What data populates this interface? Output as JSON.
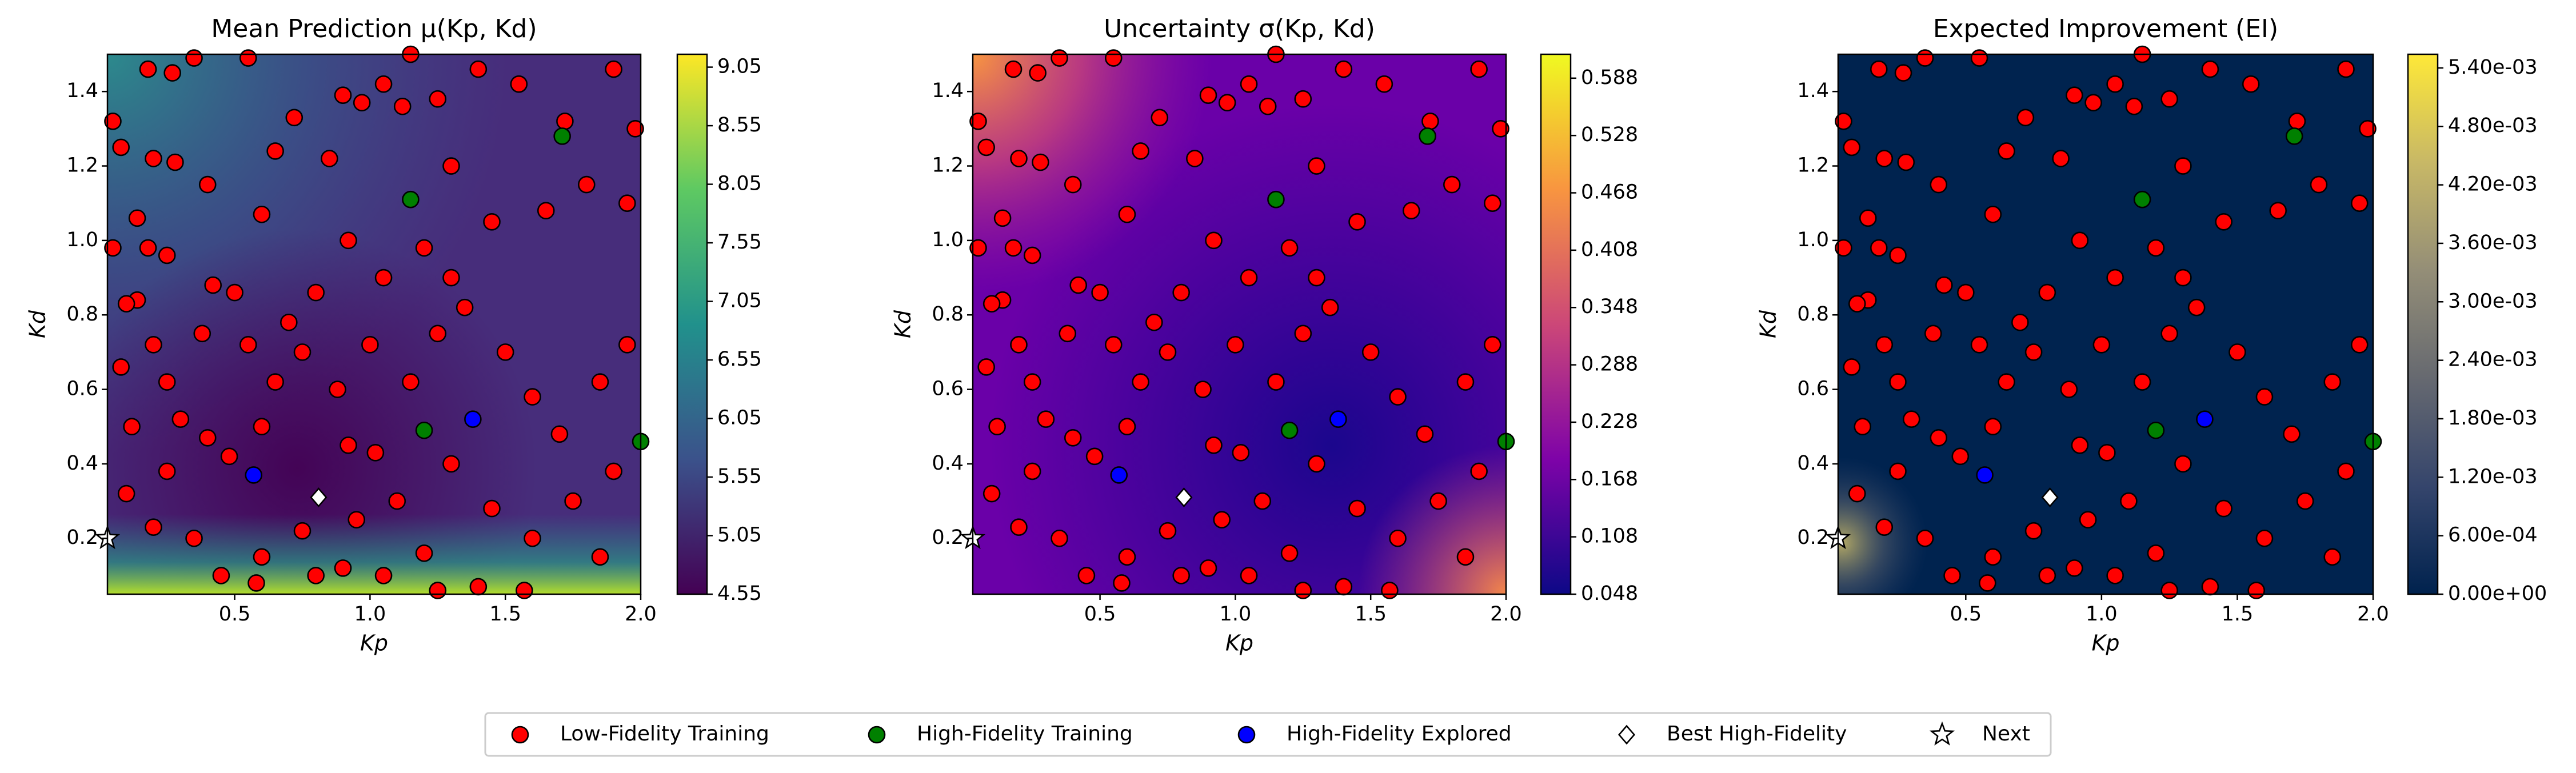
{
  "chart_data": [
    {
      "type": "scatter-heatmap",
      "title": "Mean Prediction μ(Kp, Kd)",
      "x_label": "Kp",
      "y_label": "Kd",
      "xlim": [
        0.03,
        2.0
      ],
      "ylim": [
        0.05,
        1.5
      ],
      "xticks": [
        0.5,
        {
          "value": 1,
          "label": "1.0"
        },
        1.5,
        {
          "value": 2,
          "label": "2.0"
        }
      ],
      "yticks": [
        0.2,
        0.4,
        0.6,
        0.8,
        {
          "value": 1,
          "label": "1.0"
        },
        1.2,
        1.4
      ],
      "clim": [
        4.55,
        9.16
      ],
      "cticks": [
        4.55,
        5.05,
        5.55,
        6.05,
        6.55,
        7.05,
        7.55,
        8.05,
        8.55,
        9.05
      ],
      "colormap": [
        "#440154",
        "#3b528b",
        "#21918c",
        "#5ec962",
        "#fde725"
      ],
      "series": [
        {
          "name": "Low-Fidelity Training",
          "color": "#ff0000",
          "marker": "circle",
          "x": [
            0.05,
            0.08,
            0.18,
            0.27,
            0.35,
            0.55,
            0.2,
            0.28,
            0.4,
            0.14,
            0.05,
            0.18,
            0.25,
            0.14,
            0.1,
            0.42,
            0.5,
            0.6,
            0.65,
            0.72,
            0.85,
            0.9,
            0.97,
            1.05,
            1.12,
            1.15,
            1.25,
            1.4,
            1.55,
            1.72,
            1.9,
            1.98,
            1.95,
            1.8,
            1.65,
            1.45,
            1.3,
            1.2,
            1.05,
            0.92,
            0.8,
            0.7,
            0.55,
            0.38,
            0.2,
            0.08,
            0.25,
            0.12,
            0.3,
            0.4,
            0.48,
            0.6,
            0.65,
            0.75,
            0.88,
            1.0,
            1.15,
            1.25,
            1.35,
            1.5,
            1.6,
            1.7,
            1.85,
            1.95,
            1.9,
            1.75,
            1.6,
            1.45,
            1.3,
            1.1,
            0.95,
            0.9,
            0.8,
            0.6,
            0.45,
            0.35,
            0.2,
            0.1,
            0.25,
            0.75,
            1.2,
            1.4,
            1.57,
            1.25,
            0.58,
            1.05,
            1.85,
            1.3,
            0.92,
            1.02
          ],
          "values": [
            1.32,
            1.25,
            1.46,
            1.45,
            1.49,
            1.49,
            1.22,
            1.21,
            1.15,
            1.06,
            0.98,
            0.98,
            0.96,
            0.84,
            0.83,
            0.88,
            0.86,
            1.07,
            1.24,
            1.33,
            1.22,
            1.39,
            1.37,
            1.42,
            1.36,
            1.5,
            1.38,
            1.46,
            1.42,
            1.32,
            1.46,
            1.3,
            1.1,
            1.15,
            1.08,
            1.05,
            1.2,
            0.98,
            0.9,
            1.0,
            0.86,
            0.78,
            0.72,
            0.75,
            0.72,
            0.66,
            0.62,
            0.5,
            0.52,
            0.47,
            0.42,
            0.5,
            0.62,
            0.7,
            0.6,
            0.72,
            0.62,
            0.75,
            0.82,
            0.7,
            0.58,
            0.48,
            0.62,
            0.72,
            0.38,
            0.3,
            0.2,
            0.28,
            0.4,
            0.3,
            0.25,
            0.12,
            0.1,
            0.15,
            0.1,
            0.2,
            0.23,
            0.32,
            0.38,
            0.22,
            0.16,
            0.07,
            0.06,
            0.06,
            0.08,
            0.1,
            0.15,
            0.9,
            0.45,
            0.43
          ]
        },
        {
          "name": "High-Fidelity Training",
          "color": "#008000",
          "marker": "circle",
          "x": [
            1.15,
            1.71,
            1.2,
            2.0
          ],
          "values": [
            1.11,
            1.28,
            0.49,
            0.46
          ]
        },
        {
          "name": "High-Fidelity Explored",
          "color": "#0000ff",
          "marker": "circle",
          "x": [
            0.57,
            1.38
          ],
          "values": [
            0.37,
            0.52
          ]
        },
        {
          "name": "Best High-Fidelity",
          "color": "#ffffff",
          "marker": "diamond",
          "x": [
            0.81
          ],
          "values": [
            0.31
          ]
        },
        {
          "name": "Next",
          "color": "#ffffff",
          "marker": "star",
          "x": [
            0.03
          ],
          "values": [
            0.2
          ]
        }
      ]
    },
    {
      "type": "scatter-heatmap",
      "title": "Uncertainty σ(Kp, Kd)",
      "x_label": "Kp",
      "y_label": "Kd",
      "xlim": [
        0.03,
        2.0
      ],
      "ylim": [
        0.05,
        1.5
      ],
      "xticks": [
        0.5,
        {
          "value": 1,
          "label": "1.0"
        },
        1.5,
        {
          "value": 2,
          "label": "2.0"
        }
      ],
      "yticks": [
        0.2,
        0.4,
        0.6,
        0.8,
        {
          "value": 1,
          "label": "1.0"
        },
        1.2,
        1.4
      ],
      "clim": [
        0.048,
        0.613
      ],
      "cticks": [
        0.048,
        0.108,
        0.168,
        0.228,
        0.288,
        0.348,
        0.408,
        0.468,
        0.528,
        0.588
      ],
      "colormap": [
        "#0d0887",
        "#7e03a8",
        "#cc4778",
        "#f89540",
        "#f0f921"
      ],
      "series": [
        {
          "color": "#ff0000",
          "marker": "circle",
          "x": [
            0.05,
            0.08,
            0.18,
            0.27,
            0.35,
            0.55,
            0.2,
            0.28,
            0.4,
            0.14,
            0.05,
            0.18,
            0.25,
            0.14,
            0.1,
            0.42,
            0.5,
            0.6,
            0.65,
            0.72,
            0.85,
            0.9,
            0.97,
            1.05,
            1.12,
            1.15,
            1.25,
            1.4,
            1.55,
            1.72,
            1.9,
            1.98,
            1.95,
            1.8,
            1.65,
            1.45,
            1.3,
            1.2,
            1.05,
            0.92,
            0.8,
            0.7,
            0.55,
            0.38,
            0.2,
            0.08,
            0.25,
            0.12,
            0.3,
            0.4,
            0.48,
            0.6,
            0.65,
            0.75,
            0.88,
            1.0,
            1.15,
            1.25,
            1.35,
            1.5,
            1.6,
            1.7,
            1.85,
            1.95,
            1.9,
            1.75,
            1.6,
            1.45,
            1.3,
            1.1,
            0.95,
            0.9,
            0.8,
            0.6,
            0.45,
            0.35,
            0.2,
            0.1,
            0.25,
            0.75,
            1.2,
            1.4,
            1.57,
            1.25,
            0.58,
            1.05,
            1.85,
            1.3,
            0.92,
            1.02
          ],
          "values": [
            1.32,
            1.25,
            1.46,
            1.45,
            1.49,
            1.49,
            1.22,
            1.21,
            1.15,
            1.06,
            0.98,
            0.98,
            0.96,
            0.84,
            0.83,
            0.88,
            0.86,
            1.07,
            1.24,
            1.33,
            1.22,
            1.39,
            1.37,
            1.42,
            1.36,
            1.5,
            1.38,
            1.46,
            1.42,
            1.32,
            1.46,
            1.3,
            1.1,
            1.15,
            1.08,
            1.05,
            1.2,
            0.98,
            0.9,
            1.0,
            0.86,
            0.78,
            0.72,
            0.75,
            0.72,
            0.66,
            0.62,
            0.5,
            0.52,
            0.47,
            0.42,
            0.5,
            0.62,
            0.7,
            0.6,
            0.72,
            0.62,
            0.75,
            0.82,
            0.7,
            0.58,
            0.48,
            0.62,
            0.72,
            0.38,
            0.3,
            0.2,
            0.28,
            0.4,
            0.3,
            0.25,
            0.12,
            0.1,
            0.15,
            0.1,
            0.2,
            0.23,
            0.32,
            0.38,
            0.22,
            0.16,
            0.07,
            0.06,
            0.06,
            0.08,
            0.1,
            0.15,
            0.9,
            0.45,
            0.43
          ]
        },
        {
          "color": "#008000",
          "marker": "circle",
          "x": [
            1.15,
            1.71,
            1.2,
            2.0
          ],
          "values": [
            1.11,
            1.28,
            0.49,
            0.46
          ]
        },
        {
          "color": "#0000ff",
          "marker": "circle",
          "x": [
            0.57,
            1.38
          ],
          "values": [
            0.37,
            0.52
          ]
        },
        {
          "color": "#ffffff",
          "marker": "diamond",
          "x": [
            0.81
          ],
          "values": [
            0.31
          ]
        },
        {
          "color": "#ffffff",
          "marker": "star",
          "x": [
            0.03
          ],
          "values": [
            0.2
          ]
        }
      ]
    },
    {
      "type": "scatter-heatmap",
      "title": "Expected Improvement (EI)",
      "x_label": "Kp",
      "y_label": "Kd",
      "xlim": [
        0.03,
        2.0
      ],
      "ylim": [
        0.05,
        1.5
      ],
      "xticks": [
        0.5,
        {
          "value": 1,
          "label": "1.0"
        },
        1.5,
        {
          "value": 2,
          "label": "2.0"
        }
      ],
      "yticks": [
        0.2,
        0.4,
        0.6,
        0.8,
        {
          "value": 1,
          "label": "1.0"
        },
        1.2,
        1.4
      ],
      "clim": [
        0,
        0.00554
      ],
      "cticks": [
        {
          "value": 0,
          "label": "0.00e+00"
        },
        {
          "value": 0.0006,
          "label": "6.00e-04"
        },
        {
          "value": 0.0012,
          "label": "1.20e-03"
        },
        {
          "value": 0.0018,
          "label": "1.80e-03"
        },
        {
          "value": 0.0024,
          "label": "2.40e-03"
        },
        {
          "value": 0.003,
          "label": "3.00e-03"
        },
        {
          "value": 0.0036,
          "label": "3.60e-03"
        },
        {
          "value": 0.0042,
          "label": "4.20e-03"
        },
        {
          "value": 0.0048,
          "label": "4.80e-03"
        },
        {
          "value": 0.0054,
          "label": "5.40e-03"
        }
      ],
      "colormap": [
        "#00224e",
        "#35456c",
        "#666970",
        "#948e77",
        "#c8b866",
        "#fee838"
      ],
      "series": [
        {
          "color": "#ff0000",
          "marker": "circle",
          "x": [
            0.05,
            0.08,
            0.18,
            0.27,
            0.35,
            0.55,
            0.2,
            0.28,
            0.4,
            0.14,
            0.05,
            0.18,
            0.25,
            0.14,
            0.1,
            0.42,
            0.5,
            0.6,
            0.65,
            0.72,
            0.85,
            0.9,
            0.97,
            1.05,
            1.12,
            1.15,
            1.25,
            1.4,
            1.55,
            1.72,
            1.9,
            1.98,
            1.95,
            1.8,
            1.65,
            1.45,
            1.3,
            1.2,
            1.05,
            0.92,
            0.8,
            0.7,
            0.55,
            0.38,
            0.2,
            0.08,
            0.25,
            0.12,
            0.3,
            0.4,
            0.48,
            0.6,
            0.65,
            0.75,
            0.88,
            1.0,
            1.15,
            1.25,
            1.35,
            1.5,
            1.6,
            1.7,
            1.85,
            1.95,
            1.9,
            1.75,
            1.6,
            1.45,
            1.3,
            1.1,
            0.95,
            0.9,
            0.8,
            0.6,
            0.45,
            0.35,
            0.2,
            0.1,
            0.25,
            0.75,
            1.2,
            1.4,
            1.57,
            1.25,
            0.58,
            1.05,
            1.85,
            1.3,
            0.92,
            1.02
          ],
          "values": [
            1.32,
            1.25,
            1.46,
            1.45,
            1.49,
            1.49,
            1.22,
            1.21,
            1.15,
            1.06,
            0.98,
            0.98,
            0.96,
            0.84,
            0.83,
            0.88,
            0.86,
            1.07,
            1.24,
            1.33,
            1.22,
            1.39,
            1.37,
            1.42,
            1.36,
            1.5,
            1.38,
            1.46,
            1.42,
            1.32,
            1.46,
            1.3,
            1.1,
            1.15,
            1.08,
            1.05,
            1.2,
            0.98,
            0.9,
            1.0,
            0.86,
            0.78,
            0.72,
            0.75,
            0.72,
            0.66,
            0.62,
            0.5,
            0.52,
            0.47,
            0.42,
            0.5,
            0.62,
            0.7,
            0.6,
            0.72,
            0.62,
            0.75,
            0.82,
            0.7,
            0.58,
            0.48,
            0.62,
            0.72,
            0.38,
            0.3,
            0.2,
            0.28,
            0.4,
            0.3,
            0.25,
            0.12,
            0.1,
            0.15,
            0.1,
            0.2,
            0.23,
            0.32,
            0.38,
            0.22,
            0.16,
            0.07,
            0.06,
            0.06,
            0.08,
            0.1,
            0.15,
            0.9,
            0.45,
            0.43
          ]
        },
        {
          "color": "#008000",
          "marker": "circle",
          "x": [
            1.15,
            1.71,
            1.2,
            2.0
          ],
          "values": [
            1.11,
            1.28,
            0.49,
            0.46
          ]
        },
        {
          "color": "#0000ff",
          "marker": "circle",
          "x": [
            0.57,
            1.38
          ],
          "values": [
            0.37,
            0.52
          ]
        },
        {
          "color": "#ffffff",
          "marker": "diamond",
          "x": [
            0.81
          ],
          "values": [
            0.31
          ]
        },
        {
          "color": "#ffffff",
          "marker": "star",
          "x": [
            0.03
          ],
          "values": [
            0.2
          ]
        }
      ]
    }
  ]
}
